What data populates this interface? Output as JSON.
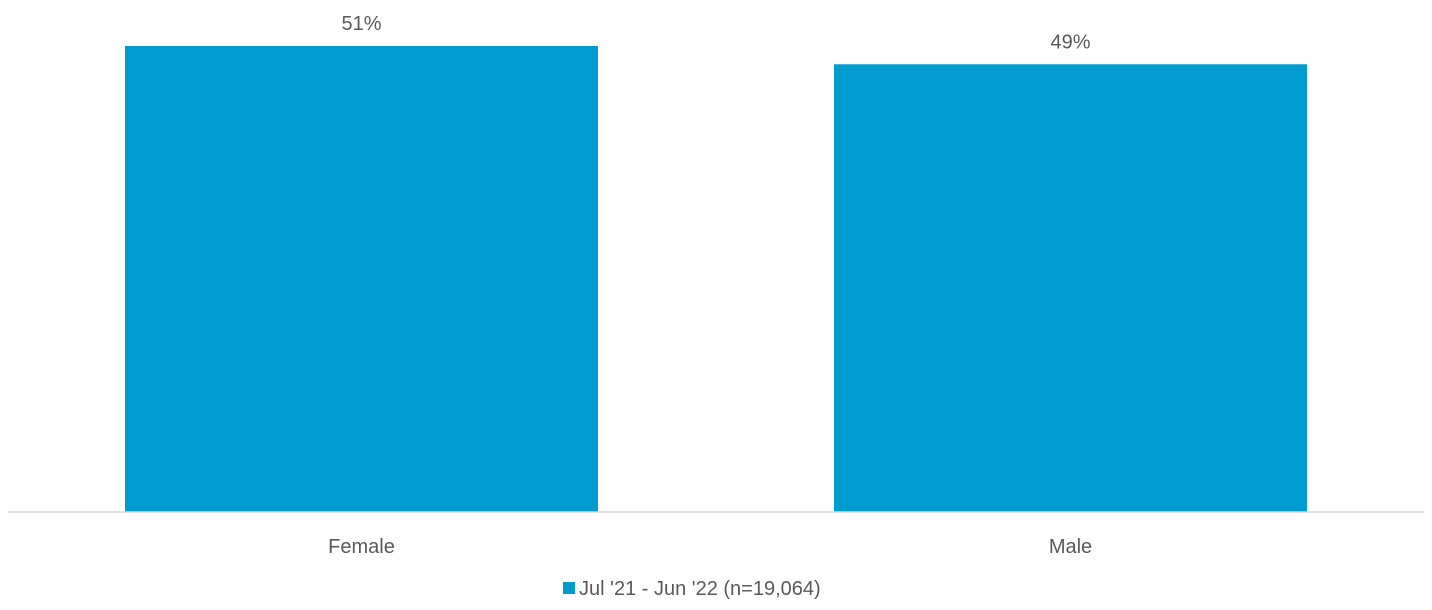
{
  "chart_data": {
    "type": "bar",
    "categories": [
      "Female",
      "Male"
    ],
    "series": [
      {
        "name": "Jul '21 - Jun '22 (n=19,064)",
        "values": [
          51,
          49
        ],
        "labels": [
          "51%",
          "49%"
        ],
        "color": "#009ccf"
      }
    ],
    "ylim": [
      0,
      51
    ],
    "grid": false,
    "legend_position": "bottom"
  }
}
